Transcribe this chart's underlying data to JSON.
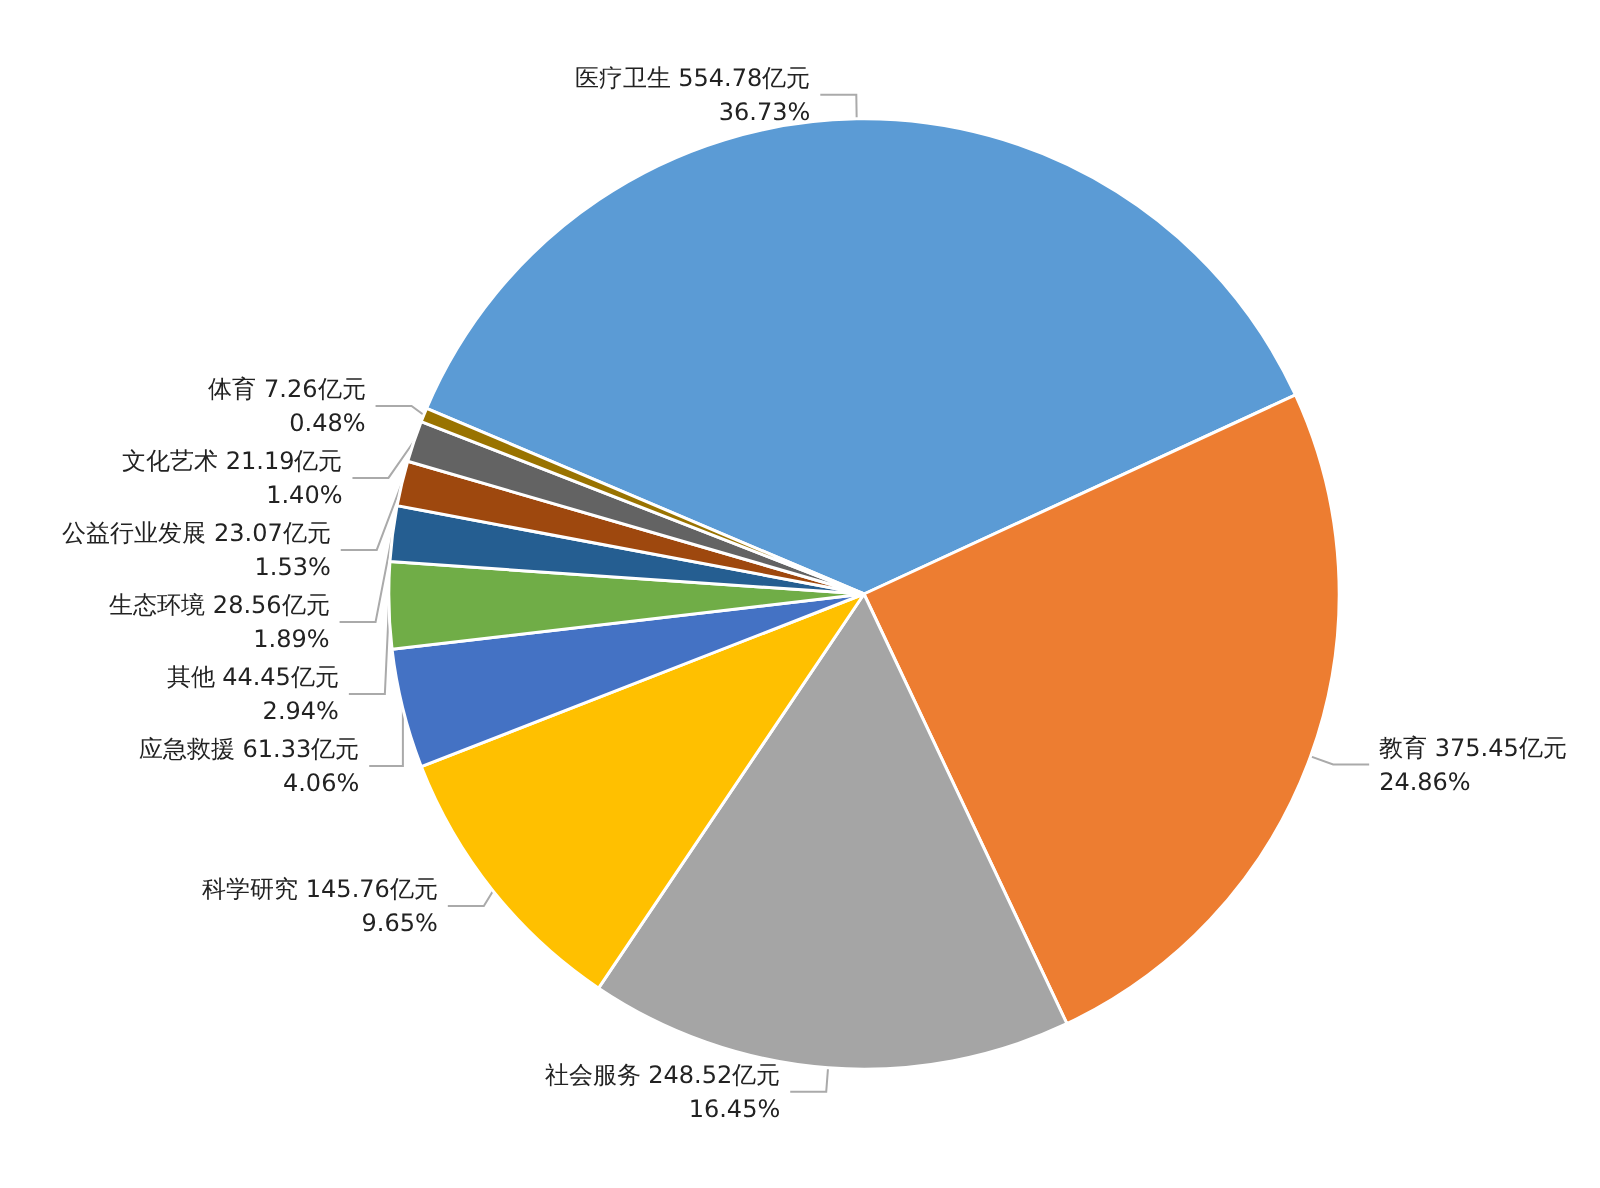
{
  "chart_data": {
    "type": "pie",
    "categories": [
      "医疗卫生",
      "教育",
      "社会服务",
      "科学研究",
      "应急救援",
      "其他",
      "生态环境",
      "公益行业发展",
      "文化艺术",
      "体育"
    ],
    "values": [
      554.78,
      375.45,
      248.52,
      145.76,
      61.33,
      44.45,
      28.56,
      23.07,
      21.19,
      7.26
    ],
    "value_labels": [
      "554.78亿元\n36.73%",
      "375.45亿元\n24.86%",
      "248.52亿元\n16.45%",
      "145.76亿元\n9.65%",
      "61.33亿元\n4.06%",
      "44.45亿元\n2.94%",
      "28.56亿元\n1.89%",
      "23.07亿元\n1.53%",
      "21.19亿元\n1.40%",
      "7.26亿元\n0.48%"
    ],
    "colors": [
      "#5b9bd5",
      "#ed7d31",
      "#a5a5a5",
      "#ffc000",
      "#4472c4",
      "#70ad47",
      "#255e91",
      "#9e480e",
      "#636363",
      "#997300"
    ],
    "legend": false
  }
}
